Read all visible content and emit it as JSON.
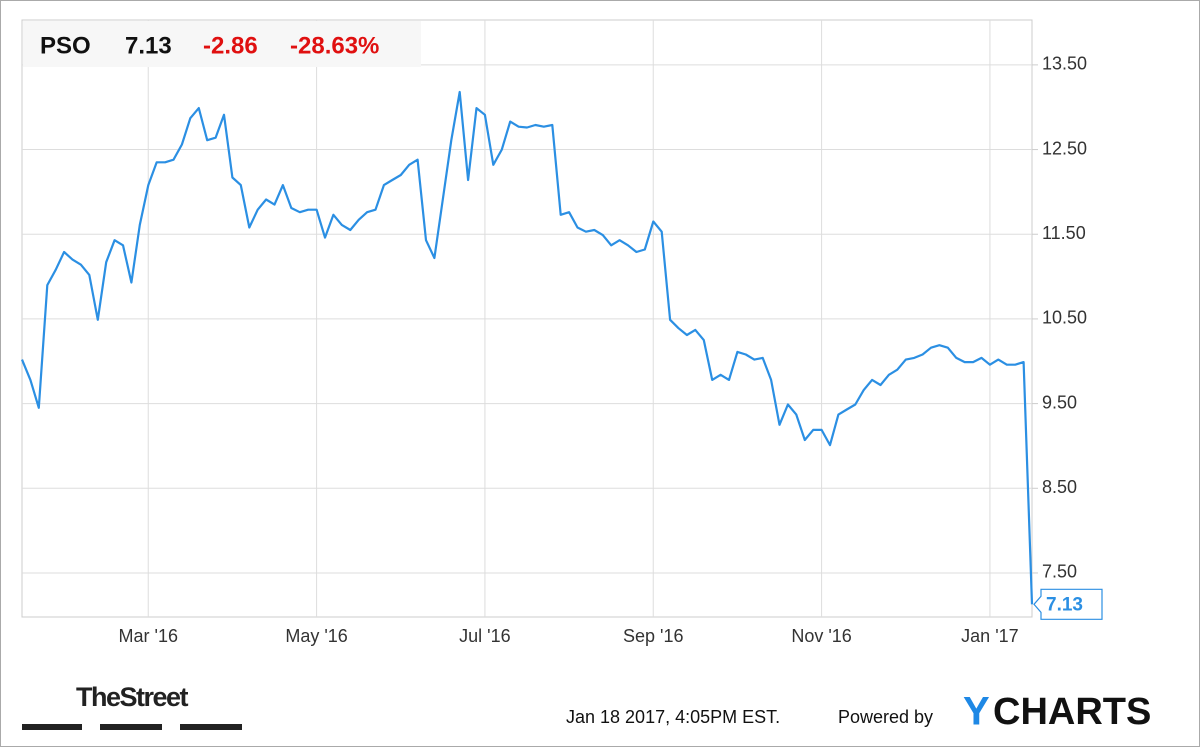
{
  "header": {
    "symbol": "PSO",
    "price": "7.13",
    "change": "-2.86",
    "change_percent": "-28.63%"
  },
  "chart_data": {
    "type": "line",
    "categories": [
      null,
      null,
      null,
      null,
      null,
      null,
      null,
      null,
      null,
      null,
      null,
      null,
      null,
      null,
      null,
      "Mar '16",
      null,
      null,
      null,
      null,
      null,
      null,
      null,
      null,
      null,
      null,
      null,
      null,
      null,
      null,
      null,
      null,
      null,
      null,
      null,
      "May '16",
      null,
      null,
      null,
      null,
      null,
      null,
      null,
      null,
      null,
      null,
      null,
      null,
      null,
      null,
      null,
      null,
      null,
      null,
      null,
      "Jul '16",
      null,
      null,
      null,
      null,
      null,
      null,
      null,
      null,
      null,
      null,
      null,
      null,
      null,
      null,
      null,
      null,
      null,
      null,
      null,
      "Sep '16",
      null,
      null,
      null,
      null,
      null,
      null,
      null,
      null,
      null,
      null,
      null,
      null,
      null,
      null,
      null,
      null,
      null,
      null,
      null,
      "Nov '16",
      null,
      null,
      null,
      null,
      null,
      null,
      null,
      null,
      null,
      null,
      null,
      null,
      null,
      null,
      null,
      null,
      null,
      null,
      null,
      "Jan '17",
      null,
      null,
      null,
      null,
      null
    ],
    "series": [
      {
        "name": "PSO",
        "color": "#2b8fe3",
        "values": [
          10.02,
          9.78,
          9.45,
          10.9,
          11.08,
          11.29,
          11.2,
          11.14,
          11.02,
          10.49,
          11.17,
          11.43,
          11.37,
          10.93,
          11.61,
          12.08,
          12.35,
          12.35,
          12.38,
          12.56,
          12.87,
          12.99,
          12.61,
          12.64,
          12.91,
          12.17,
          12.08,
          11.58,
          11.79,
          11.91,
          11.85,
          12.08,
          11.81,
          11.76,
          11.79,
          11.79,
          11.46,
          11.73,
          11.61,
          11.55,
          11.67,
          11.76,
          11.79,
          12.08,
          12.14,
          12.2,
          12.32,
          12.38,
          11.43,
          11.22,
          11.91,
          12.61,
          13.18,
          12.14,
          12.99,
          12.91,
          12.32,
          12.5,
          12.83,
          12.77,
          12.76,
          12.79,
          12.77,
          12.79,
          11.73,
          11.76,
          11.58,
          11.53,
          11.55,
          11.49,
          11.37,
          11.43,
          11.37,
          11.29,
          11.32,
          11.65,
          11.53,
          10.49,
          10.39,
          10.31,
          10.37,
          10.25,
          9.78,
          9.84,
          9.78,
          10.11,
          10.08,
          10.02,
          10.04,
          9.78,
          9.25,
          9.49,
          9.37,
          9.07,
          9.19,
          9.19,
          9.01,
          9.37,
          9.43,
          9.49,
          9.66,
          9.78,
          9.72,
          9.84,
          9.9,
          10.02,
          10.04,
          10.08,
          10.16,
          10.19,
          10.16,
          10.04,
          9.99,
          9.99,
          10.04,
          9.96,
          10.02,
          9.96,
          9.96,
          9.99,
          7.13
        ]
      }
    ],
    "ylim": [
      6.98,
      14.03
    ],
    "yticks": [
      {
        "value": 7.5,
        "label": "7.50"
      },
      {
        "value": 8.5,
        "label": "8.50"
      },
      {
        "value": 9.5,
        "label": "9.50"
      },
      {
        "value": 10.5,
        "label": "10.50"
      },
      {
        "value": 11.5,
        "label": "11.50"
      },
      {
        "value": 12.5,
        "label": "12.50"
      },
      {
        "value": 13.5,
        "label": "13.50"
      }
    ],
    "grid": true
  },
  "footer": {
    "source_logo": "TheStreet",
    "timestamp": "Jan 18 2017, 4:05PM EST.",
    "powered_by": "Powered by",
    "brand_initial": "Y",
    "brand_rest": "CHARTS"
  }
}
